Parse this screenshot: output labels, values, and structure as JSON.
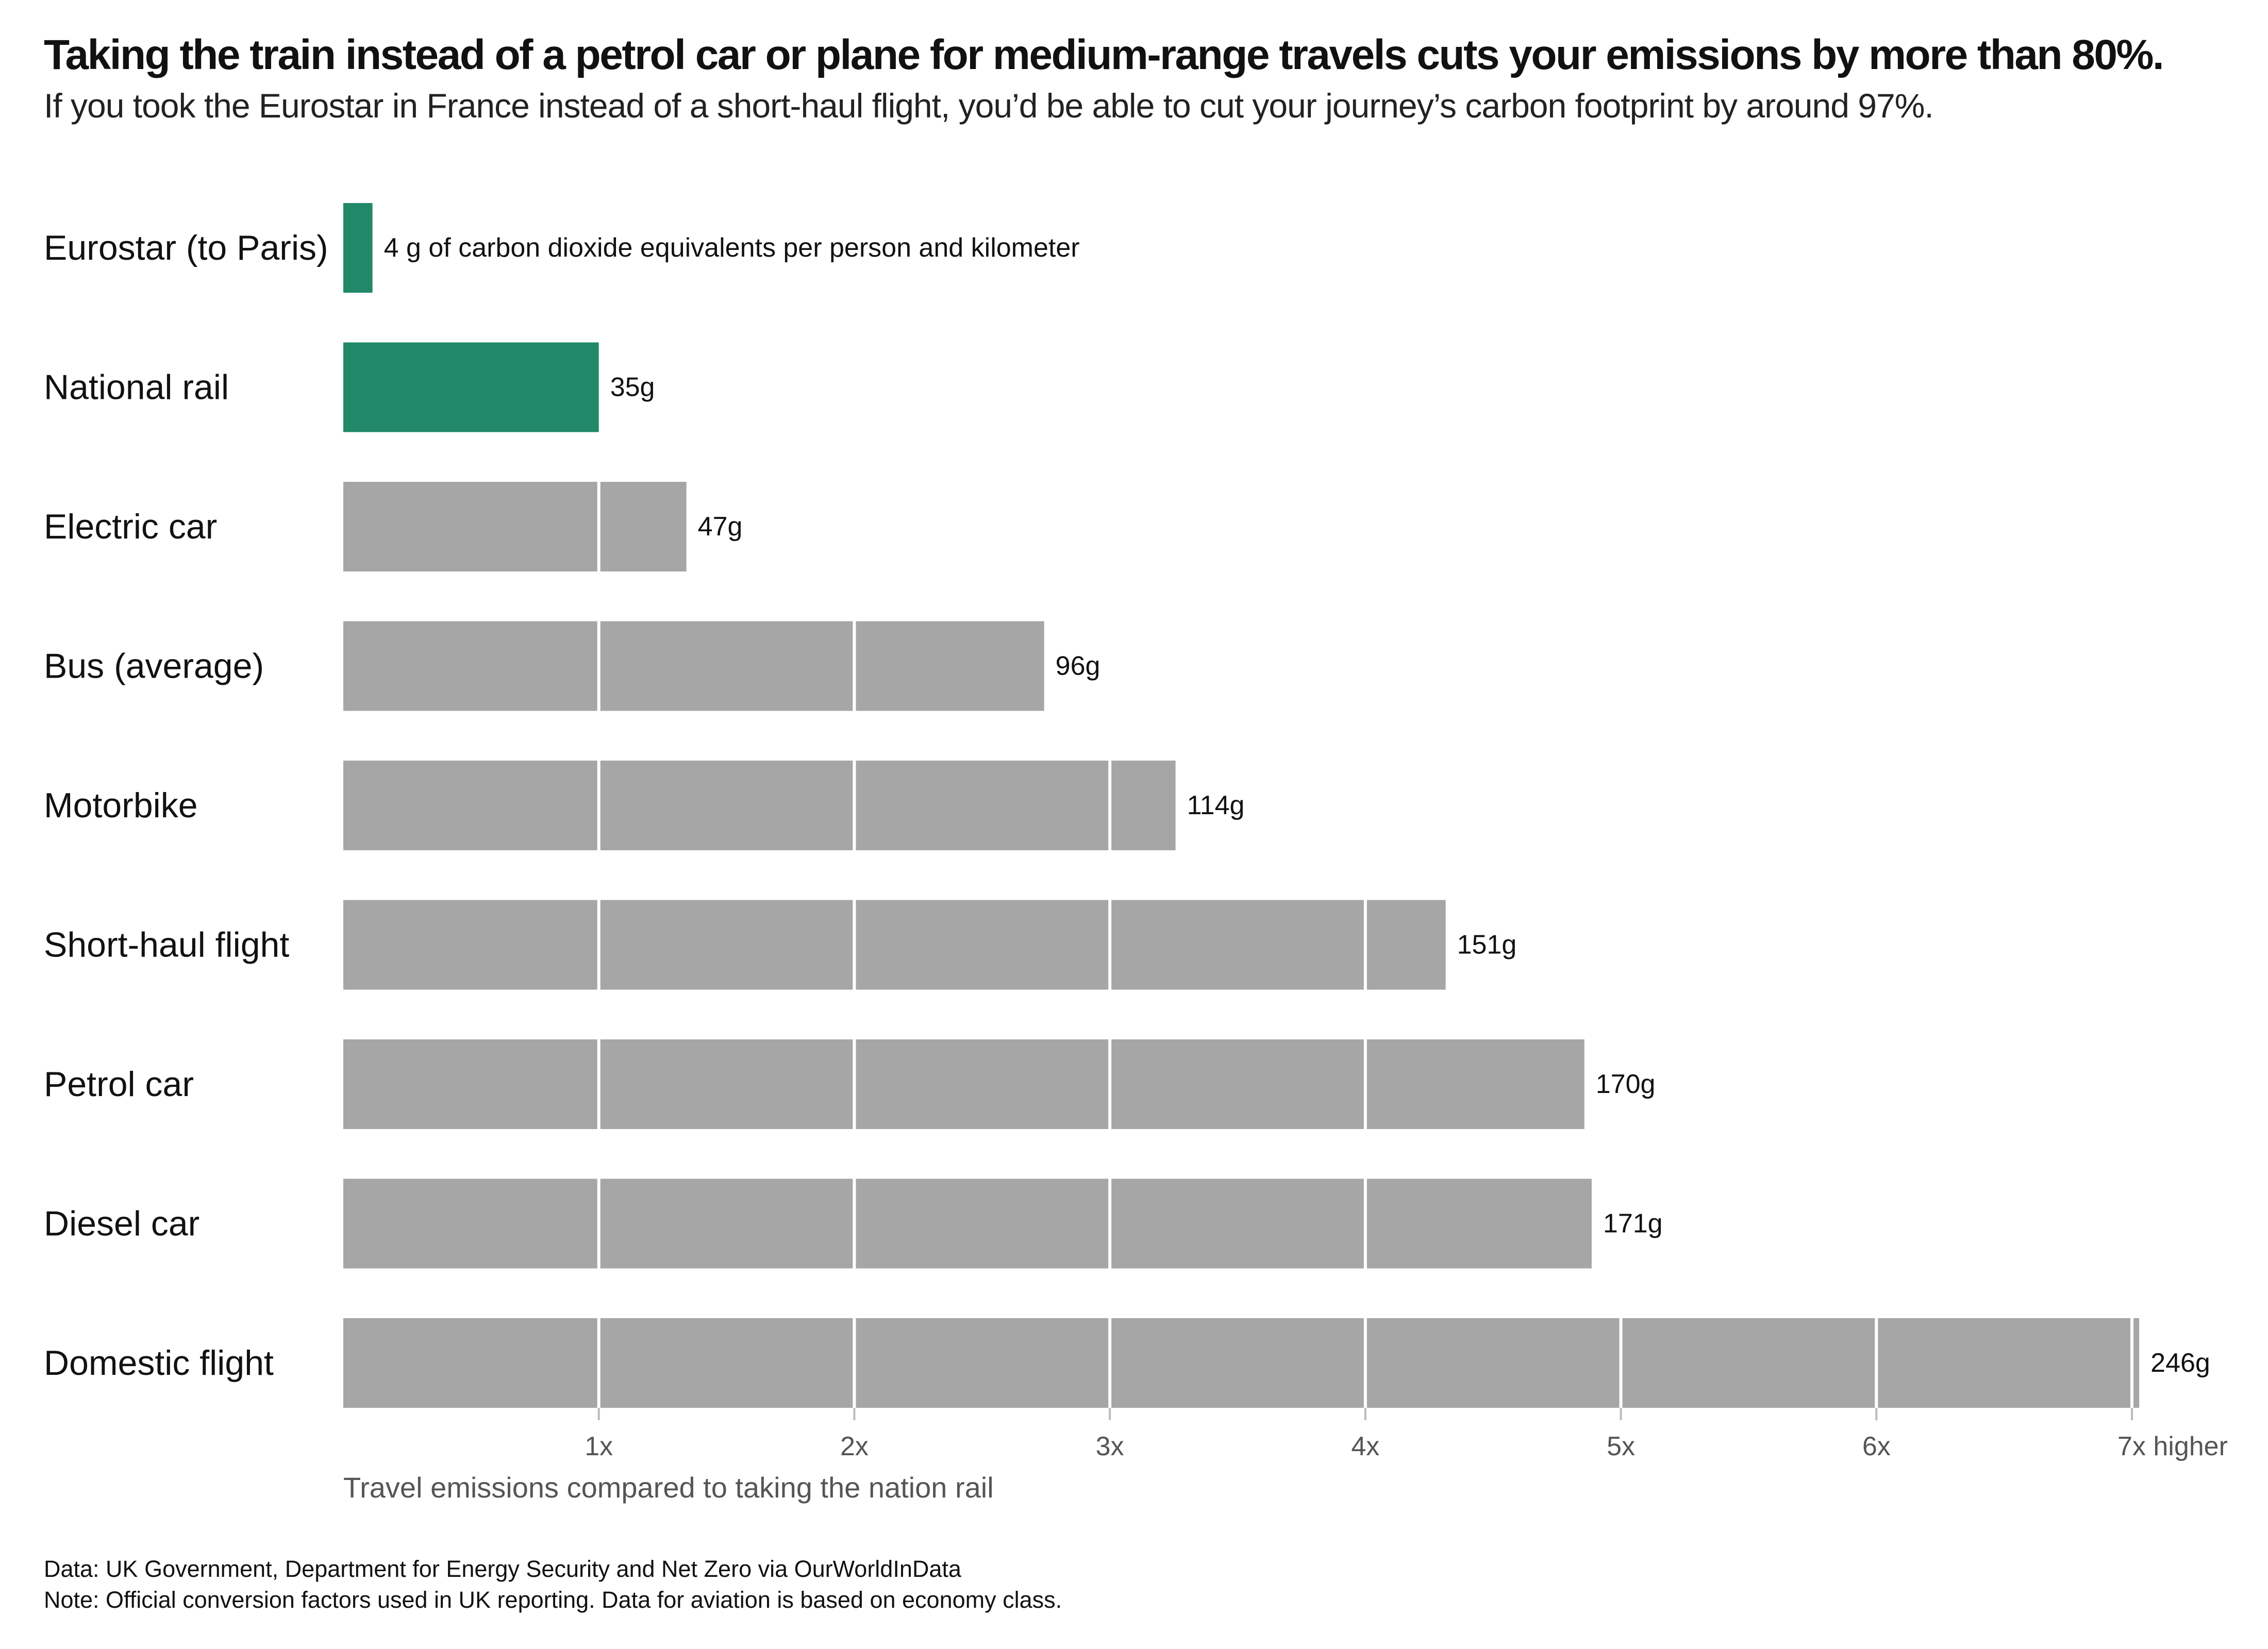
{
  "title": "Taking the train instead of a petrol car or plane for medium-range travels cuts your emissions by more than 80%.",
  "subtitle": "If you took the Eurostar in France instead of a short-haul flight, you’d be able to cut your journey’s carbon footprint by around 97%.",
  "source": "Data: UK Government, Department for Energy Security and Net Zero via OurWorldInData",
  "note": "Note: Official conversion factors used in UK reporting. Data for aviation is based on economy class.",
  "colors": {
    "highlight": "#218868",
    "other": "#a6a6a6",
    "divider": "#ffffff",
    "tick_label": "#555555"
  },
  "chart_data": {
    "type": "bar",
    "orientation": "horizontal",
    "categories": [
      "Eurostar (to Paris)",
      "National rail",
      "Electric car",
      "Bus (average)",
      "Motorbike",
      "Short-haul flight",
      "Petrol car",
      "Diesel car",
      "Domestic flight"
    ],
    "values": [
      4,
      35,
      47,
      96,
      114,
      151,
      170,
      171,
      246
    ],
    "unit": "g of carbon dioxide equivalents per person and kilometer",
    "value_labels": [
      "4 g of carbon dioxide equivalents per person and kilometer",
      "35g",
      "47g",
      "96g",
      "114g",
      "151g",
      "170g",
      "171g",
      "246g"
    ],
    "highlighted": [
      "Eurostar (to Paris)",
      "National rail"
    ],
    "baseline_value": 35,
    "x_ticks": [
      "1x",
      "2x",
      "3x",
      "4x",
      "5x",
      "6x",
      "7x higher"
    ],
    "x_tick_multiples": [
      1,
      2,
      3,
      4,
      5,
      6,
      7
    ],
    "xlabel": "Travel emissions compared to taking the nation rail",
    "ylabel": "",
    "xlim": [
      0,
      245
    ],
    "grid": false
  }
}
